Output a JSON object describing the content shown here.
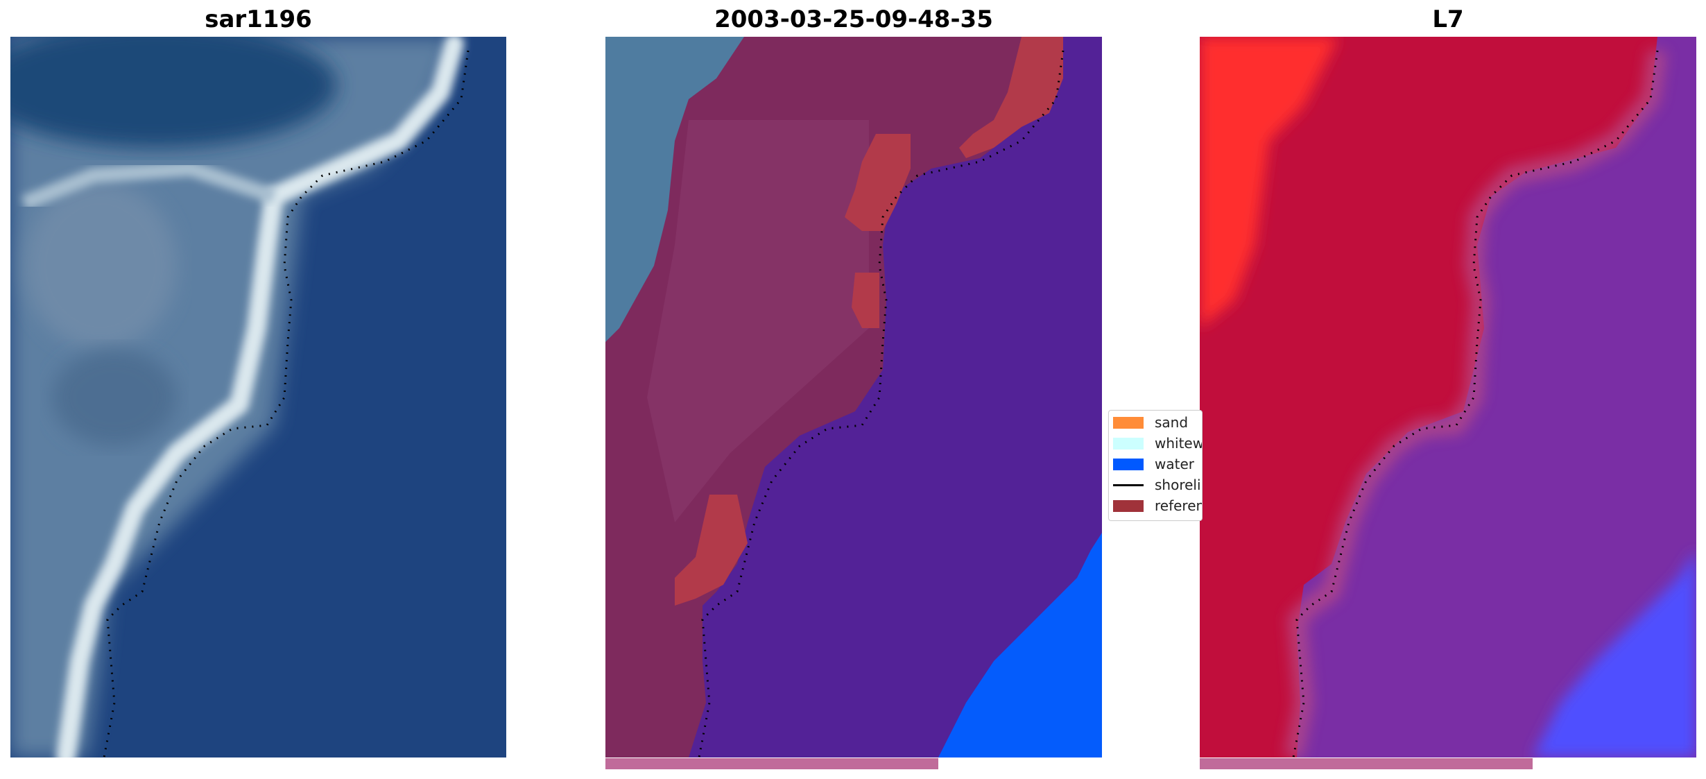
{
  "panels": [
    {
      "title": "sar1196"
    },
    {
      "title": "2003-03-25-09-48-35"
    },
    {
      "title": "L7"
    }
  ],
  "legend": {
    "items": [
      {
        "label": "sand",
        "color": "#ff8c38",
        "kind": "patch"
      },
      {
        "label": "whitewater",
        "color": "#ccffff",
        "kind": "patch"
      },
      {
        "label": "water",
        "color": "#0059ff",
        "kind": "patch"
      },
      {
        "label": "shoreline",
        "color": "#000000",
        "kind": "line"
      },
      {
        "label": "reference shoreline",
        "color": "#a0323a",
        "kind": "patch"
      }
    ]
  },
  "progress": {
    "fraction": 0.67,
    "color": "#c06b9a"
  },
  "colors": {
    "rgb_ocean": "#1e447f",
    "rgb_land": "#5d7fa2",
    "rgb_beach": "#dbe8ee",
    "class_land": "#7e2a5d",
    "class_water": "#532297",
    "class_water_bright": "#045cfc",
    "class_reference": "#b23a4a",
    "prob_land": "#c10e3c",
    "prob_land_bright": "#ff2d2d",
    "prob_water": "#7a2ea5",
    "prob_water_bright": "#5050ff"
  }
}
